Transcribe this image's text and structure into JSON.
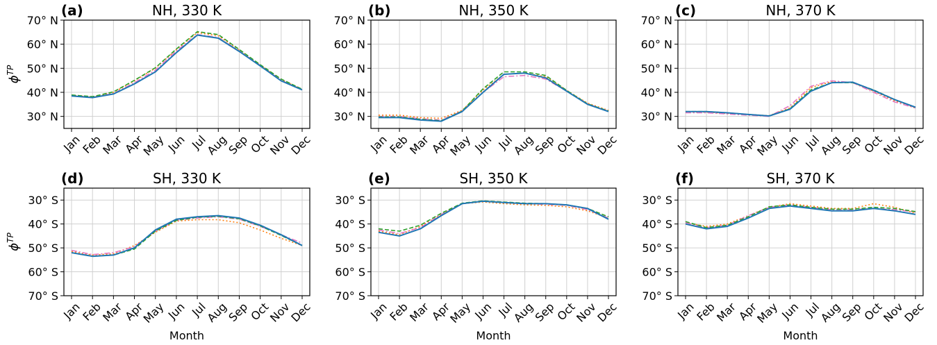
{
  "chart_data": [
    {
      "type": "line",
      "label": "(a)",
      "title": "NH, 330 K",
      "xlabel": "",
      "ylabel": "ϕ^TP",
      "y_ticks": [
        "70° N",
        "60° N",
        "50° N",
        "40° N",
        "30° N"
      ],
      "ylim": [
        25,
        70
      ],
      "series": [
        {
          "style": "solid-blue",
          "values": [
            38.5,
            37.8,
            39.3,
            43.5,
            48.5,
            56.5,
            63.8,
            62.5,
            57.0,
            51.0,
            44.8,
            41.0
          ]
        },
        {
          "style": "dashdot-pink",
          "values": [
            38.6,
            37.9,
            39.5,
            44.0,
            49.2,
            57.2,
            64.0,
            62.8,
            57.2,
            51.2,
            45.0,
            41.0
          ]
        },
        {
          "style": "dotted-orange",
          "values": [
            38.8,
            38.0,
            40.0,
            44.8,
            50.0,
            57.8,
            64.8,
            63.5,
            57.5,
            51.3,
            45.3,
            41.2
          ]
        },
        {
          "style": "dashed-green",
          "values": [
            38.9,
            38.2,
            40.2,
            45.0,
            50.2,
            58.0,
            65.2,
            64.0,
            57.8,
            51.5,
            45.5,
            41.3
          ]
        }
      ]
    },
    {
      "type": "line",
      "label": "(b)",
      "title": "NH, 350 K",
      "xlabel": "",
      "ylabel": "",
      "y_ticks": [
        "70° N",
        "60° N",
        "50° N",
        "40° N",
        "30° N"
      ],
      "ylim": [
        25,
        70
      ],
      "series": [
        {
          "style": "solid-blue",
          "values": [
            29.5,
            29.5,
            28.5,
            28.0,
            32.0,
            40.0,
            47.5,
            48.0,
            46.0,
            40.5,
            35.0,
            32.0
          ]
        },
        {
          "style": "dashdot-pink",
          "values": [
            30.0,
            30.0,
            29.0,
            28.5,
            32.2,
            40.0,
            46.5,
            47.0,
            45.5,
            40.5,
            35.2,
            32.2
          ]
        },
        {
          "style": "dotted-orange",
          "values": [
            30.5,
            30.5,
            29.5,
            29.2,
            32.5,
            41.0,
            47.5,
            48.0,
            46.5,
            40.8,
            35.5,
            32.5
          ]
        },
        {
          "style": "dashed-green",
          "values": [
            29.8,
            29.8,
            28.8,
            28.2,
            32.2,
            41.5,
            48.5,
            48.5,
            47.0,
            40.8,
            35.2,
            32.2
          ]
        }
      ]
    },
    {
      "type": "line",
      "label": "(c)",
      "title": "NH, 370 K",
      "xlabel": "",
      "ylabel": "",
      "y_ticks": [
        "70° N",
        "60° N",
        "50° N",
        "40° N",
        "30° N"
      ],
      "ylim": [
        25,
        70
      ],
      "series": [
        {
          "style": "solid-blue",
          "values": [
            32.0,
            32.0,
            31.5,
            30.8,
            30.2,
            33.0,
            40.5,
            44.0,
            44.2,
            40.8,
            37.0,
            33.8
          ]
        },
        {
          "style": "dashdot-pink",
          "values": [
            31.5,
            31.5,
            31.0,
            30.5,
            30.0,
            34.5,
            42.5,
            44.8,
            44.0,
            40.0,
            36.0,
            33.5
          ]
        },
        {
          "style": "dotted-orange",
          "values": [
            31.8,
            31.8,
            31.2,
            30.8,
            30.3,
            33.5,
            42.0,
            44.5,
            44.0,
            40.5,
            36.5,
            33.5
          ]
        },
        {
          "style": "dashed-green",
          "values": [
            32.0,
            32.0,
            31.5,
            30.8,
            30.2,
            33.2,
            41.0,
            44.0,
            44.0,
            41.0,
            37.0,
            33.8
          ]
        }
      ]
    },
    {
      "type": "line",
      "label": "(d)",
      "title": "SH, 330 K",
      "xlabel": "Month",
      "ylabel": "ϕ^TP",
      "y_ticks": [
        "30° S",
        "40° S",
        "50° S",
        "60° S",
        "70° S"
      ],
      "ylim": [
        -70,
        -25
      ],
      "series": [
        {
          "style": "solid-blue",
          "values": [
            -52.0,
            -53.5,
            -53.0,
            -50.0,
            -42.5,
            -38.0,
            -37.0,
            -36.5,
            -37.5,
            -40.5,
            -44.5,
            -49.0
          ]
        },
        {
          "style": "dashdot-pink",
          "values": [
            -51.0,
            -52.8,
            -52.0,
            -49.5,
            -43.0,
            -38.5,
            -37.5,
            -37.0,
            -38.0,
            -41.0,
            -44.5,
            -48.0
          ]
        },
        {
          "style": "dotted-orange",
          "values": [
            -51.5,
            -53.0,
            -52.5,
            -49.0,
            -43.5,
            -38.8,
            -38.2,
            -38.2,
            -39.5,
            -42.5,
            -46.0,
            -49.0
          ]
        },
        {
          "style": "dashed-green",
          "values": [
            -52.0,
            -53.5,
            -53.0,
            -50.5,
            -43.0,
            -38.5,
            -37.2,
            -36.8,
            -37.8,
            -40.8,
            -44.8,
            -49.0
          ]
        }
      ]
    },
    {
      "type": "line",
      "label": "(e)",
      "title": "SH, 350 K",
      "xlabel": "Month",
      "ylabel": "",
      "y_ticks": [
        "30° S",
        "40° S",
        "50° S",
        "60° S",
        "70° S"
      ],
      "ylim": [
        -70,
        -25
      ],
      "series": [
        {
          "style": "solid-blue",
          "values": [
            -43.5,
            -45.0,
            -42.0,
            -36.5,
            -31.5,
            -30.5,
            -31.0,
            -31.5,
            -31.5,
            -32.0,
            -33.5,
            -38.0
          ]
        },
        {
          "style": "dashdot-pink",
          "values": [
            -42.5,
            -44.0,
            -41.5,
            -36.0,
            -31.5,
            -30.5,
            -31.0,
            -31.5,
            -31.8,
            -32.2,
            -34.0,
            -37.5
          ]
        },
        {
          "style": "dotted-orange",
          "values": [
            -43.0,
            -44.5,
            -41.0,
            -36.0,
            -31.5,
            -30.8,
            -31.5,
            -32.0,
            -32.2,
            -32.8,
            -34.5,
            -37.5
          ]
        },
        {
          "style": "dashed-green",
          "values": [
            -42.0,
            -43.0,
            -40.5,
            -35.5,
            -31.3,
            -30.3,
            -30.8,
            -31.3,
            -31.5,
            -32.0,
            -33.5,
            -37.0
          ]
        }
      ]
    },
    {
      "type": "line",
      "label": "(f)",
      "title": "SH, 370 K",
      "xlabel": "Month",
      "ylabel": "",
      "y_ticks": [
        "30° S",
        "40° S",
        "50° S",
        "60° S",
        "70° S"
      ],
      "ylim": [
        -70,
        -25
      ],
      "series": [
        {
          "style": "solid-blue",
          "values": [
            -40.0,
            -42.0,
            -41.0,
            -37.5,
            -33.5,
            -32.5,
            -33.5,
            -34.5,
            -34.5,
            -33.5,
            -34.5,
            -36.0
          ]
        },
        {
          "style": "dashdot-pink",
          "values": [
            -39.5,
            -41.5,
            -40.5,
            -36.5,
            -33.0,
            -32.0,
            -33.0,
            -34.0,
            -34.0,
            -33.5,
            -34.0,
            -35.0
          ]
        },
        {
          "style": "dotted-orange",
          "values": [
            -39.5,
            -41.0,
            -40.0,
            -36.5,
            -33.0,
            -31.5,
            -32.5,
            -33.5,
            -33.5,
            -31.5,
            -33.0,
            -35.5
          ]
        },
        {
          "style": "dashed-green",
          "values": [
            -39.0,
            -41.5,
            -40.5,
            -37.0,
            -32.8,
            -32.0,
            -33.0,
            -33.8,
            -33.8,
            -33.0,
            -33.5,
            -34.8
          ]
        }
      ]
    }
  ],
  "months": [
    "Jan",
    "Feb",
    "Mar",
    "Apr",
    "May",
    "Jun",
    "Jul",
    "Aug",
    "Sep",
    "Oct",
    "Nov",
    "Dec"
  ],
  "colors": {
    "solid-blue": "#1f77b4",
    "dashdot-pink": "#e377c2",
    "dotted-orange": "#ff7f0e",
    "dashed-green": "#2ca02c",
    "grid": "#d0d0d0"
  }
}
